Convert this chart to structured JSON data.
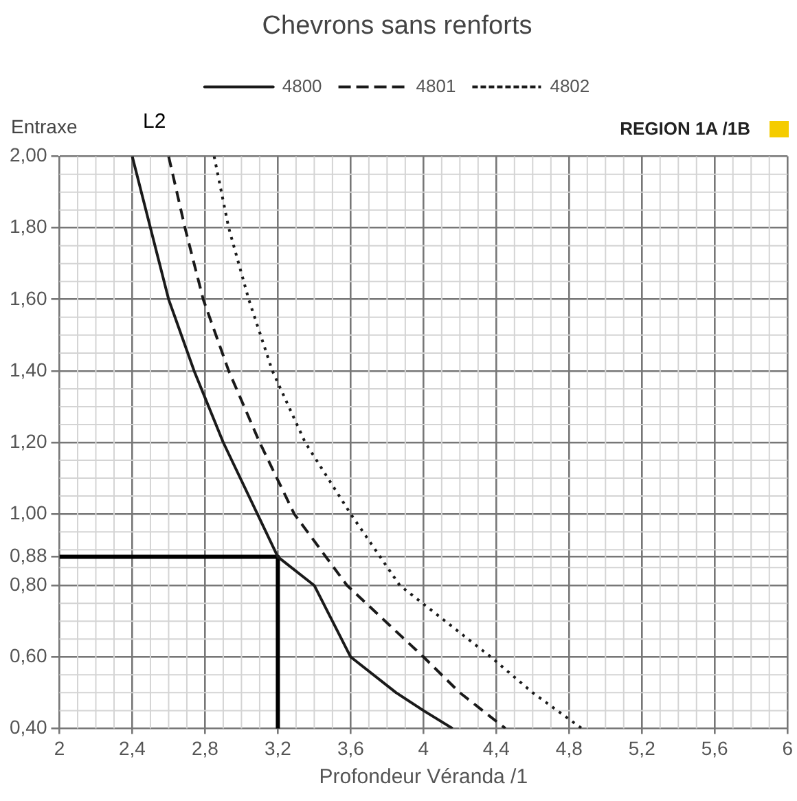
{
  "chart_data": {
    "type": "line",
    "title": "Chevrons sans renforts",
    "xlabel": "Profondeur Véranda /1",
    "ylabel": "Entraxe",
    "annotations": [
      "L2",
      "REGION 1A /1B"
    ],
    "series": [
      {
        "name": "4800",
        "color": "#1a1a1a",
        "line_style": "solid",
        "x": [
          2.4,
          2.5,
          2.6,
          2.74,
          2.9,
          3.2,
          3.4,
          3.6,
          3.85,
          4.0,
          4.16
        ],
        "values": [
          2.0,
          1.8,
          1.6,
          1.4,
          1.2,
          0.88,
          0.8,
          0.6,
          0.5,
          0.45,
          0.4
        ]
      },
      {
        "name": "4801",
        "color": "#1a1a1a",
        "line_style": "dashed",
        "x": [
          2.6,
          2.69,
          2.79,
          2.93,
          3.1,
          3.29,
          3.58,
          4.0,
          4.2,
          4.45
        ],
        "values": [
          2.0,
          1.8,
          1.6,
          1.4,
          1.2,
          1.0,
          0.8,
          0.6,
          0.5,
          0.4
        ]
      },
      {
        "name": "4802",
        "color": "#1a1a1a",
        "line_style": "dotted",
        "x": [
          2.85,
          2.93,
          3.04,
          3.17,
          3.35,
          3.6,
          3.87,
          4.37,
          4.6,
          4.87
        ],
        "values": [
          2.0,
          1.8,
          1.6,
          1.4,
          1.2,
          1.0,
          0.8,
          0.6,
          0.5,
          0.4
        ]
      },
      {
        "color": "#000000",
        "line_style": "solid",
        "x": [
          2,
          3.2,
          3.2
        ],
        "values": [
          0.88,
          0.88,
          0.4
        ]
      }
    ],
    "xlim": [
      2,
      6
    ],
    "ylim": [
      0.4,
      2.0
    ],
    "xticks": [
      {
        "value": 2,
        "label": "2"
      },
      {
        "value": 2.4,
        "label": "2,4"
      },
      {
        "value": 2.8,
        "label": "2,8"
      },
      {
        "value": 3.2,
        "label": "3,2"
      },
      {
        "value": 3.6,
        "label": "3,6"
      },
      {
        "value": 4,
        "label": "4"
      },
      {
        "value": 4.4,
        "label": "4,4"
      },
      {
        "value": 4.8,
        "label": "4,8"
      },
      {
        "value": 5.2,
        "label": "5,2"
      },
      {
        "value": 5.6,
        "label": "5,6"
      },
      {
        "value": 6,
        "label": "6"
      }
    ],
    "yticks": [
      {
        "value": 0.4,
        "label": "0,40"
      },
      {
        "value": 0.6,
        "label": "0,60"
      },
      {
        "value": 0.8,
        "label": "0,80"
      },
      {
        "value": 0.88,
        "label": "0,88"
      },
      {
        "value": 1.0,
        "label": "1,00"
      },
      {
        "value": 1.2,
        "label": "1,20"
      },
      {
        "value": 1.4,
        "label": "1,40"
      },
      {
        "value": 1.6,
        "label": "1,60"
      },
      {
        "value": 1.8,
        "label": "1,80"
      },
      {
        "value": 2.0,
        "label": "2,00"
      }
    ],
    "grid": true,
    "legend": "top",
    "marker": "none"
  }
}
